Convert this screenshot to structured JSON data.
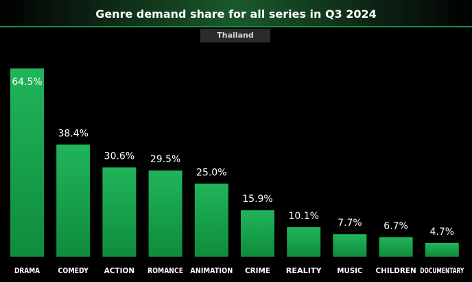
{
  "chart_data": {
    "type": "bar",
    "title": "Genre demand share for all series in Q3 2024",
    "subtitle": "Thailand",
    "categories": [
      "DRAMA",
      "COMEDY",
      "ACTION",
      "ROMANCE",
      "ANIMATION",
      "CRIME",
      "REALITY",
      "MUSIC",
      "CHILDREN",
      "DOCUMENTARY"
    ],
    "values": [
      64.5,
      38.4,
      30.6,
      29.5,
      25.0,
      15.9,
      10.1,
      7.7,
      6.7,
      4.7
    ],
    "value_labels": [
      "64.5%",
      "38.4%",
      "30.6%",
      "29.5%",
      "25.0%",
      "15.9%",
      "10.1%",
      "7.7%",
      "6.7%",
      "4.7%"
    ],
    "xlabel": "",
    "ylabel": "",
    "ylim": [
      0,
      64.5
    ],
    "grid": false,
    "legend": "none",
    "colors": {
      "bar_top": "#21b45a",
      "bar_bottom": "#0f8c3c",
      "background": "#000000",
      "text": "#ffffff"
    }
  }
}
